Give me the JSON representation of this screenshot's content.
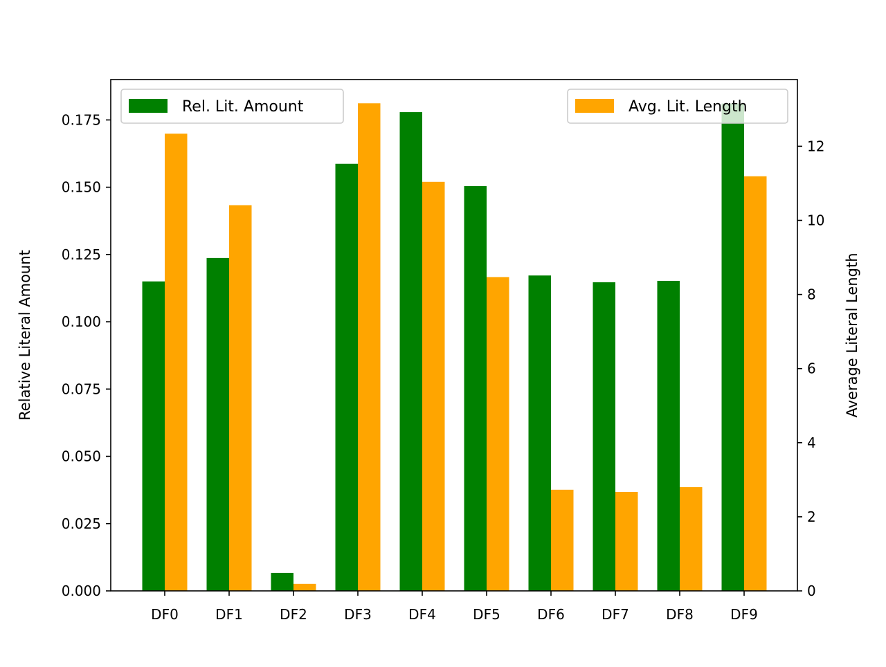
{
  "chart_data": {
    "type": "bar",
    "categories": [
      "DF0",
      "DF1",
      "DF2",
      "DF3",
      "DF4",
      "DF5",
      "DF6",
      "DF7",
      "DF8",
      "DF9"
    ],
    "series": [
      {
        "name": "Rel. Lit. Amount",
        "axis": "left",
        "color": "#008000",
        "values": [
          0.115,
          0.1237,
          0.0067,
          0.1587,
          0.1779,
          0.1504,
          0.1172,
          0.1147,
          0.1152,
          0.1811
        ]
      },
      {
        "name": "Avg. Lit. Length",
        "axis": "right",
        "color": "#ffa500",
        "values": [
          12.34,
          10.41,
          0.19,
          13.16,
          11.04,
          8.47,
          2.73,
          2.67,
          2.8,
          11.19
        ]
      }
    ],
    "xlabel": "",
    "ylabel": "Relative Literal Amount",
    "ylabel_right": "Average Literal Length",
    "ylim": [
      0,
      0.19
    ],
    "ylim_right": [
      0,
      13.8
    ],
    "yticks": [
      "0.000",
      "0.025",
      "0.050",
      "0.075",
      "0.100",
      "0.125",
      "0.150",
      "0.175"
    ],
    "yticks_right": [
      "0",
      "2",
      "4",
      "6",
      "8",
      "10",
      "12"
    ],
    "grid": false,
    "legend_left_placement": "upper-left",
    "legend_right_placement": "upper-right"
  }
}
